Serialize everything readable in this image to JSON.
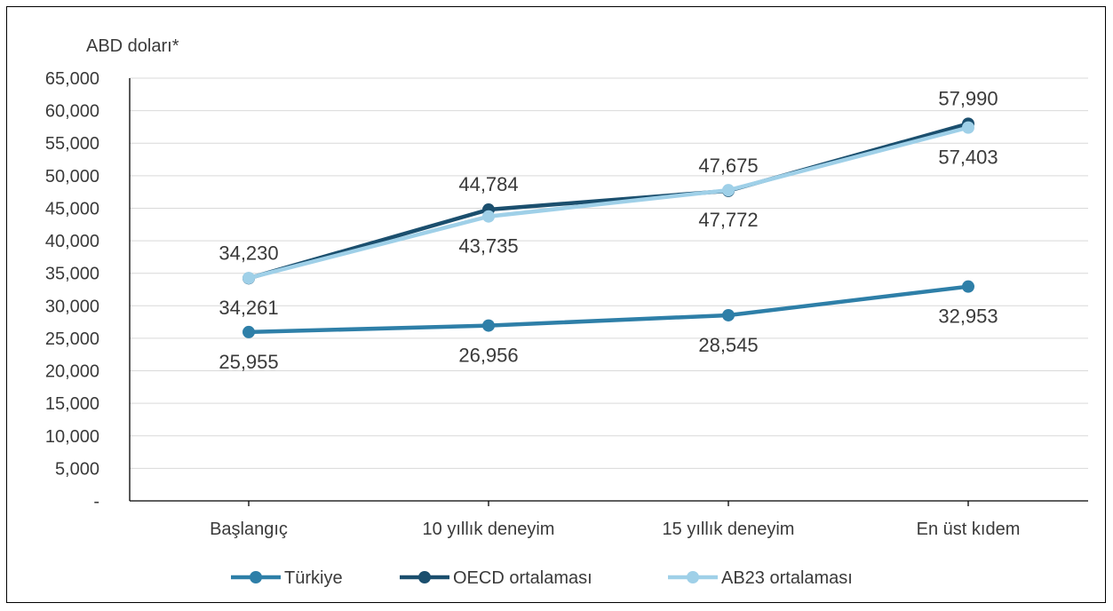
{
  "chart_data": {
    "type": "line",
    "ylabel": "ABD doları*",
    "categories": [
      "Başlangıç",
      "10 yıllık deneyim",
      "15 yıllık deneyim",
      "En üst kıdem"
    ],
    "ylim": [
      0,
      65000
    ],
    "yticks": [
      "-",
      "5,000",
      "10,000",
      "15,000",
      "20,000",
      "25,000",
      "30,000",
      "35,000",
      "40,000",
      "45,000",
      "50,000",
      "55,000",
      "60,000",
      "65,000"
    ],
    "grid": true,
    "legend_position": "bottom",
    "series": [
      {
        "name": "Türkiye",
        "values": [
          25955,
          26956,
          28545,
          32953
        ],
        "labels": [
          "25,955",
          "26,956",
          "28,545",
          "32,953"
        ],
        "color": "#2e7fa8",
        "label_pos": [
          "below",
          "below",
          "below",
          "below"
        ]
      },
      {
        "name": "OECD ortalaması",
        "values": [
          34230,
          44784,
          47675,
          57990
        ],
        "labels": [
          "34,230",
          "44,784",
          "47,675",
          "57,990"
        ],
        "color": "#1b4f6e",
        "label_pos": [
          "above",
          "above",
          "above",
          "above"
        ]
      },
      {
        "name": "AB23 ortalaması",
        "values": [
          34261,
          43735,
          47772,
          57403
        ],
        "labels": [
          "34,261",
          "43,735",
          "47,772",
          "57,403"
        ],
        "color": "#9fd0e8",
        "label_pos": [
          "below",
          "below",
          "below",
          "below"
        ]
      }
    ]
  }
}
